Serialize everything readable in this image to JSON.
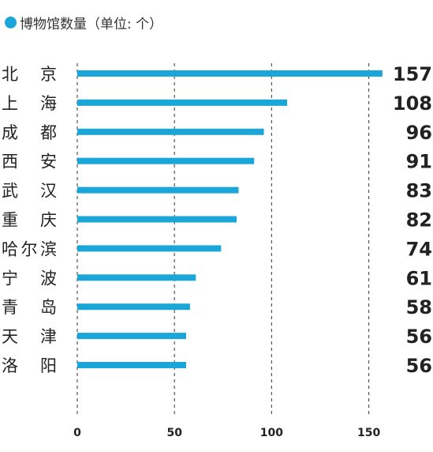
{
  "legend": {
    "label": "博物馆数量（单位: 个）",
    "color": "#1aa6d9"
  },
  "chart_data": {
    "type": "bar",
    "orientation": "horizontal",
    "title": "",
    "xlabel": "",
    "ylabel": "",
    "categories": [
      "北　京",
      "上　海",
      "成　都",
      "西　安",
      "武　汉",
      "重　庆",
      "哈尔滨",
      "宁　波",
      "青　岛",
      "天　津",
      "洛　阳"
    ],
    "series": [
      {
        "name": "博物馆数量（单位: 个）",
        "color": "#1aa6d9",
        "values": [
          157,
          108,
          96,
          91,
          83,
          82,
          74,
          61,
          58,
          56,
          56
        ]
      }
    ],
    "xlim": [
      0,
      157
    ],
    "xticks": [
      0,
      50,
      100,
      150
    ],
    "grid": "vertical-dashed",
    "legend_position": "top-left",
    "bar_color": "#1aa6d9",
    "gridline_color": "#555555",
    "value_label_color": "#222222",
    "category_label_color": "#222222"
  }
}
